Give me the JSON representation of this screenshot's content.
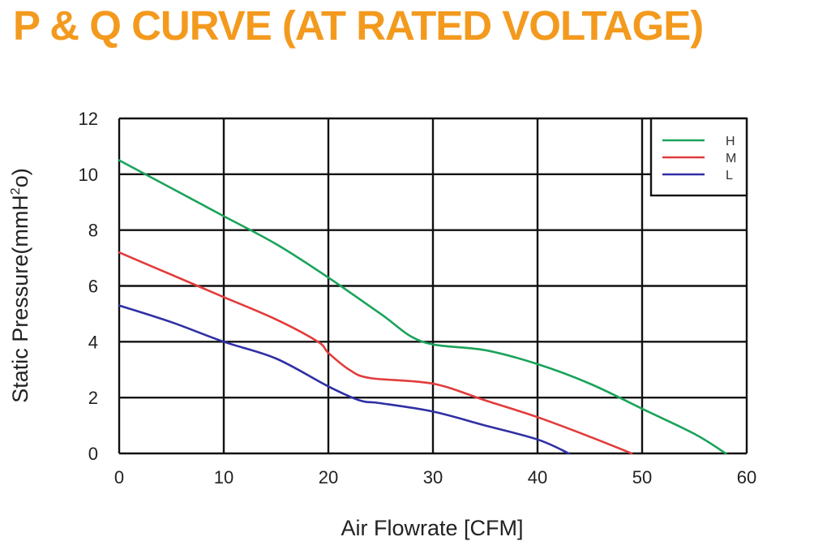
{
  "chart_data": {
    "type": "line",
    "title": "P & Q CURVE (AT RATED VOLTAGE)",
    "xlabel": "Air  Flowrate   [CFM]",
    "ylabel_main": "Static Pressure(mmH",
    "ylabel_sup": "2",
    "ylabel_tail": "o)",
    "xlim": [
      0,
      60
    ],
    "ylim": [
      0,
      12
    ],
    "x_ticks": [
      "0",
      "10",
      "20",
      "30",
      "40",
      "50",
      "60"
    ],
    "y_ticks": [
      "0",
      "2",
      "4",
      "6",
      "8",
      "10",
      "12"
    ],
    "grid": true,
    "legend_position": "top-right",
    "series": [
      {
        "name": "H",
        "color": "#1aa35a",
        "points": [
          [
            0,
            10.5
          ],
          [
            5,
            9.5
          ],
          [
            10,
            8.5
          ],
          [
            15,
            7.5
          ],
          [
            20,
            6.3
          ],
          [
            25,
            5.0
          ],
          [
            29,
            4.0
          ],
          [
            35,
            3.7
          ],
          [
            40,
            3.2
          ],
          [
            45,
            2.5
          ],
          [
            50,
            1.6
          ],
          [
            55,
            0.7
          ],
          [
            58,
            0.0
          ]
        ]
      },
      {
        "name": "M",
        "color": "#e23b3b",
        "points": [
          [
            0,
            7.2
          ],
          [
            5,
            6.4
          ],
          [
            10,
            5.6
          ],
          [
            15,
            4.8
          ],
          [
            19,
            4.0
          ],
          [
            20,
            3.6
          ],
          [
            22,
            3.0
          ],
          [
            24,
            2.7
          ],
          [
            30,
            2.5
          ],
          [
            35,
            1.9
          ],
          [
            40,
            1.3
          ],
          [
            45,
            0.6
          ],
          [
            49,
            0.0
          ]
        ]
      },
      {
        "name": "L",
        "color": "#2f2fa5",
        "points": [
          [
            0,
            5.3
          ],
          [
            5,
            4.7
          ],
          [
            10,
            4.0
          ],
          [
            15,
            3.4
          ],
          [
            20,
            2.4
          ],
          [
            23,
            1.9
          ],
          [
            25,
            1.8
          ],
          [
            30,
            1.5
          ],
          [
            35,
            1.0
          ],
          [
            40,
            0.5
          ],
          [
            43,
            0.0
          ]
        ]
      }
    ]
  }
}
